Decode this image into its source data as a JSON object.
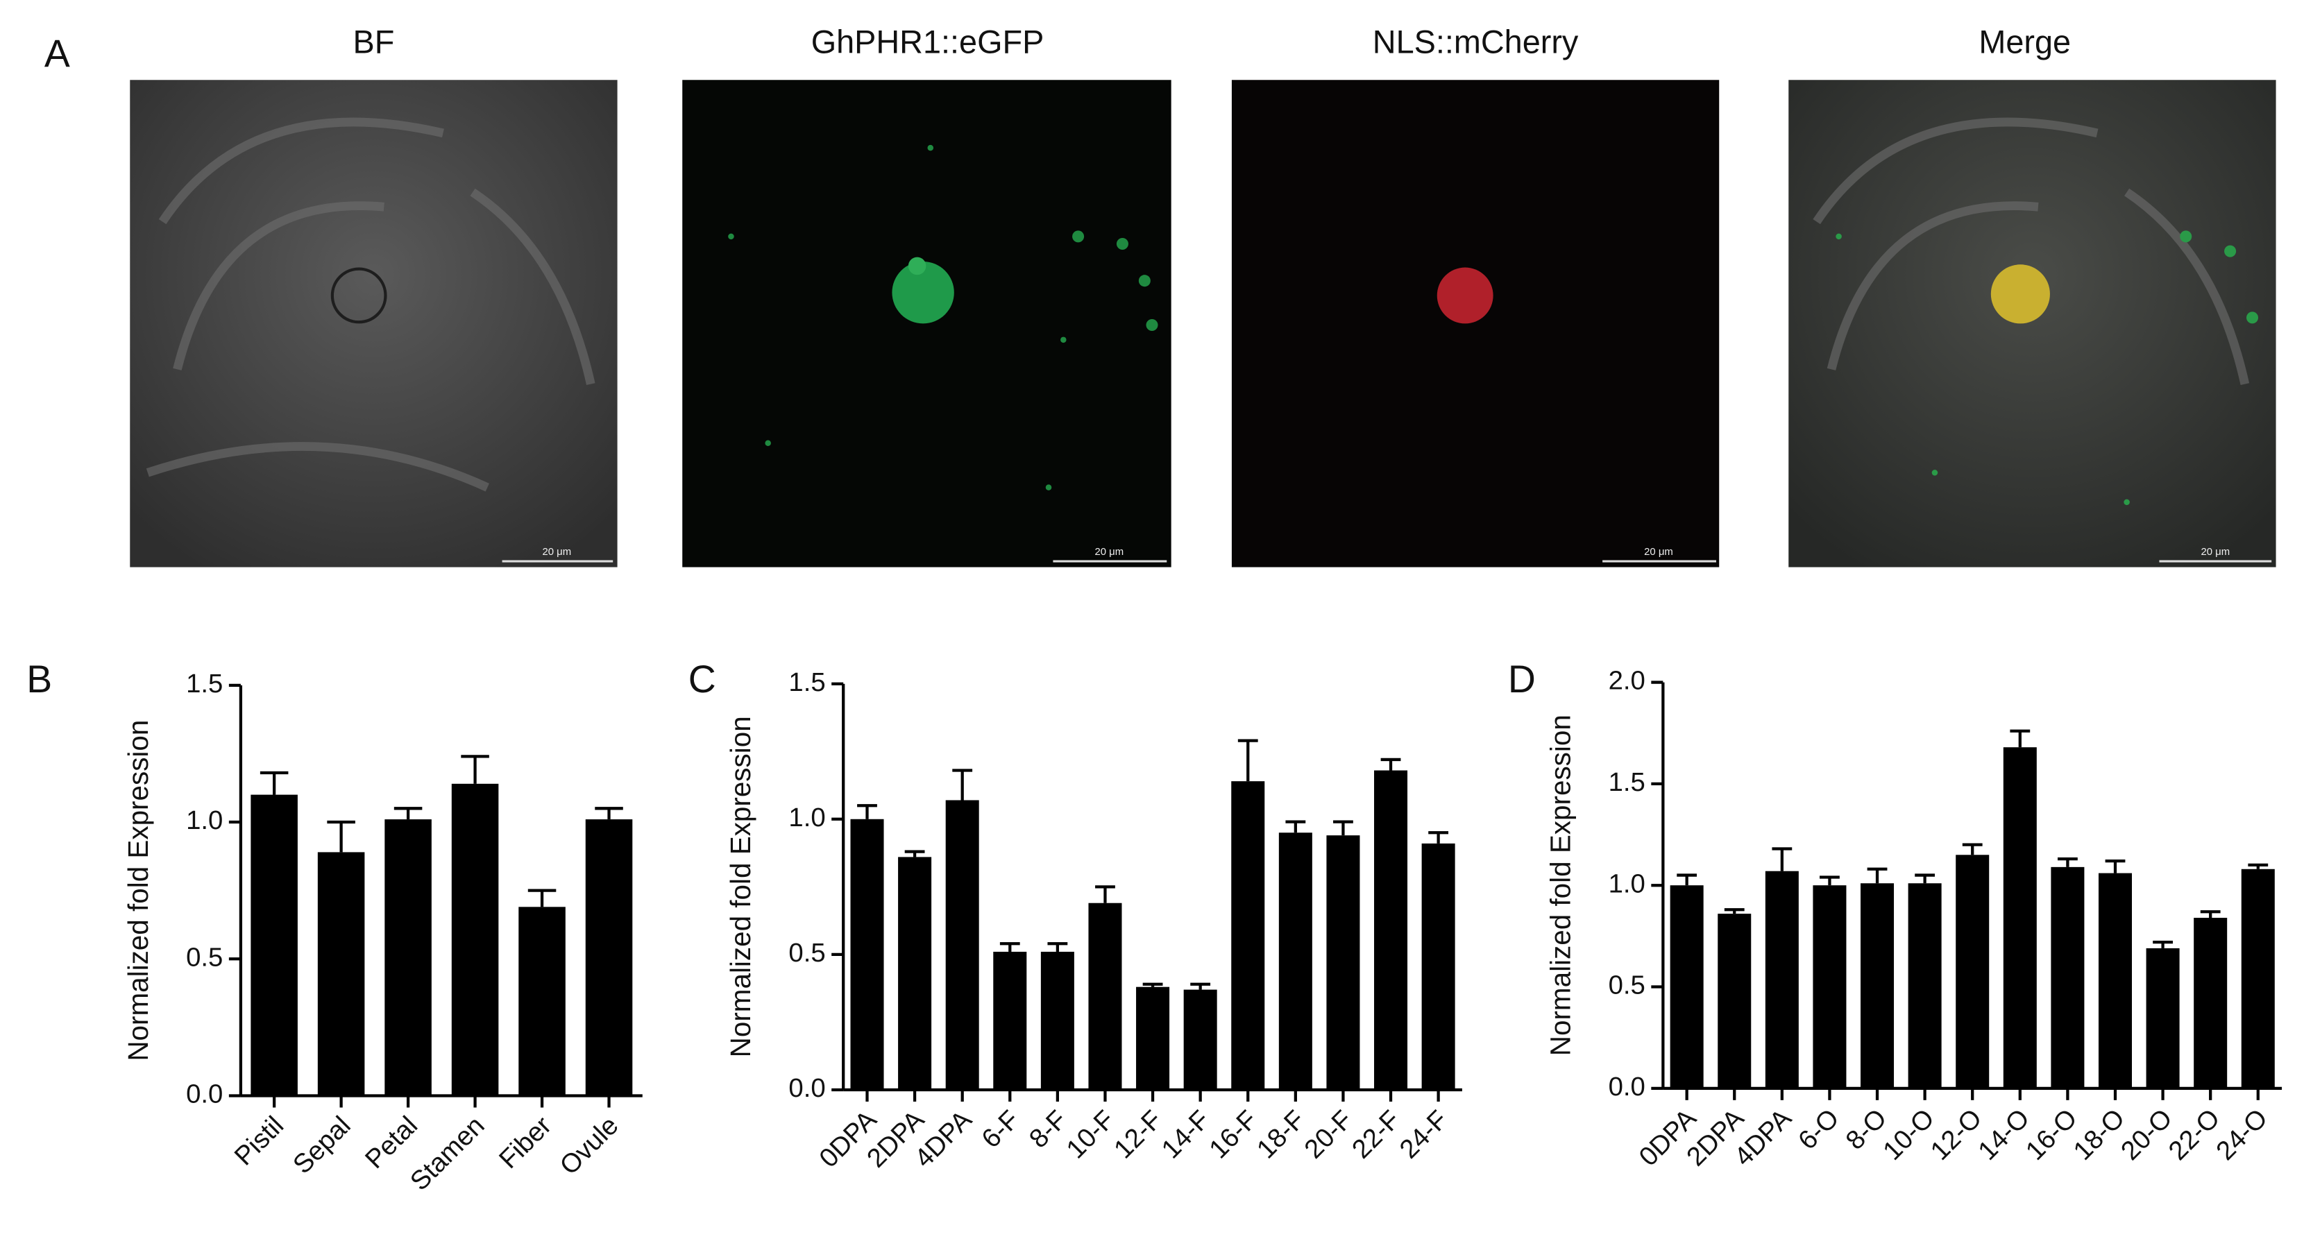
{
  "panel_a": {
    "label": "A",
    "titles": [
      "BF",
      "GhPHR1::eGFP",
      "NLS::mCherry",
      "Merge"
    ],
    "scale_bar": "20 μm"
  },
  "chart_data": [
    {
      "type": "bar",
      "label": "B",
      "y_label": "Normalized fold Expression",
      "color": "#000000",
      "categories": [
        "Pistil",
        "Sepal",
        "Petal",
        "Stamen",
        "Fiber",
        "Ovule"
      ],
      "values": [
        1.1,
        0.89,
        1.01,
        1.14,
        0.69,
        1.01
      ],
      "errors": [
        0.08,
        0.11,
        0.04,
        0.1,
        0.06,
        0.04
      ],
      "ylim": [
        0,
        1.5
      ],
      "yticks": [
        {
          "value": 0,
          "label": "0.0"
        },
        0.5,
        {
          "value": 1,
          "label": "1.0"
        },
        1.5
      ]
    },
    {
      "type": "bar",
      "label": "C",
      "y_label": "Normalized fold Expression",
      "color": "#000000",
      "categories": [
        "0DPA",
        "2DPA",
        "4DPA",
        "6-F",
        "8-F",
        "10-F",
        "12-F",
        "14-F",
        "16-F",
        "18-F",
        "20-F",
        "22-F",
        "24-F"
      ],
      "values": [
        1.0,
        0.86,
        1.07,
        0.51,
        0.51,
        0.69,
        0.38,
        0.37,
        1.14,
        0.95,
        0.94,
        1.18,
        0.91
      ],
      "errors": [
        0.05,
        0.02,
        0.11,
        0.03,
        0.03,
        0.06,
        0.01,
        0.02,
        0.15,
        0.04,
        0.05,
        0.04,
        0.04
      ],
      "ylim": [
        0,
        1.5
      ],
      "yticks": [
        {
          "value": 0,
          "label": "0.0"
        },
        0.5,
        {
          "value": 1,
          "label": "1.0"
        },
        1.5
      ]
    },
    {
      "type": "bar",
      "label": "D",
      "y_label": "Normalized fold Expression",
      "color": "#000000",
      "categories": [
        "0DPA",
        "2DPA",
        "4DPA",
        "6-O",
        "8-O",
        "10-O",
        "12-O",
        "14-O",
        "16-O",
        "18-O",
        "20-O",
        "22-O",
        "24-O"
      ],
      "values": [
        1.0,
        0.86,
        1.07,
        1.0,
        1.01,
        1.01,
        1.15,
        1.68,
        1.09,
        1.06,
        0.69,
        0.84,
        1.08
      ],
      "errors": [
        0.05,
        0.02,
        0.11,
        0.04,
        0.07,
        0.04,
        0.05,
        0.08,
        0.04,
        0.06,
        0.03,
        0.03,
        0.02
      ],
      "ylim": [
        0,
        2
      ],
      "yticks": [
        {
          "value": 0,
          "label": "0.0"
        },
        0.5,
        {
          "value": 1,
          "label": "1.0"
        },
        1.5,
        {
          "value": 2,
          "label": "2.0"
        }
      ]
    }
  ]
}
